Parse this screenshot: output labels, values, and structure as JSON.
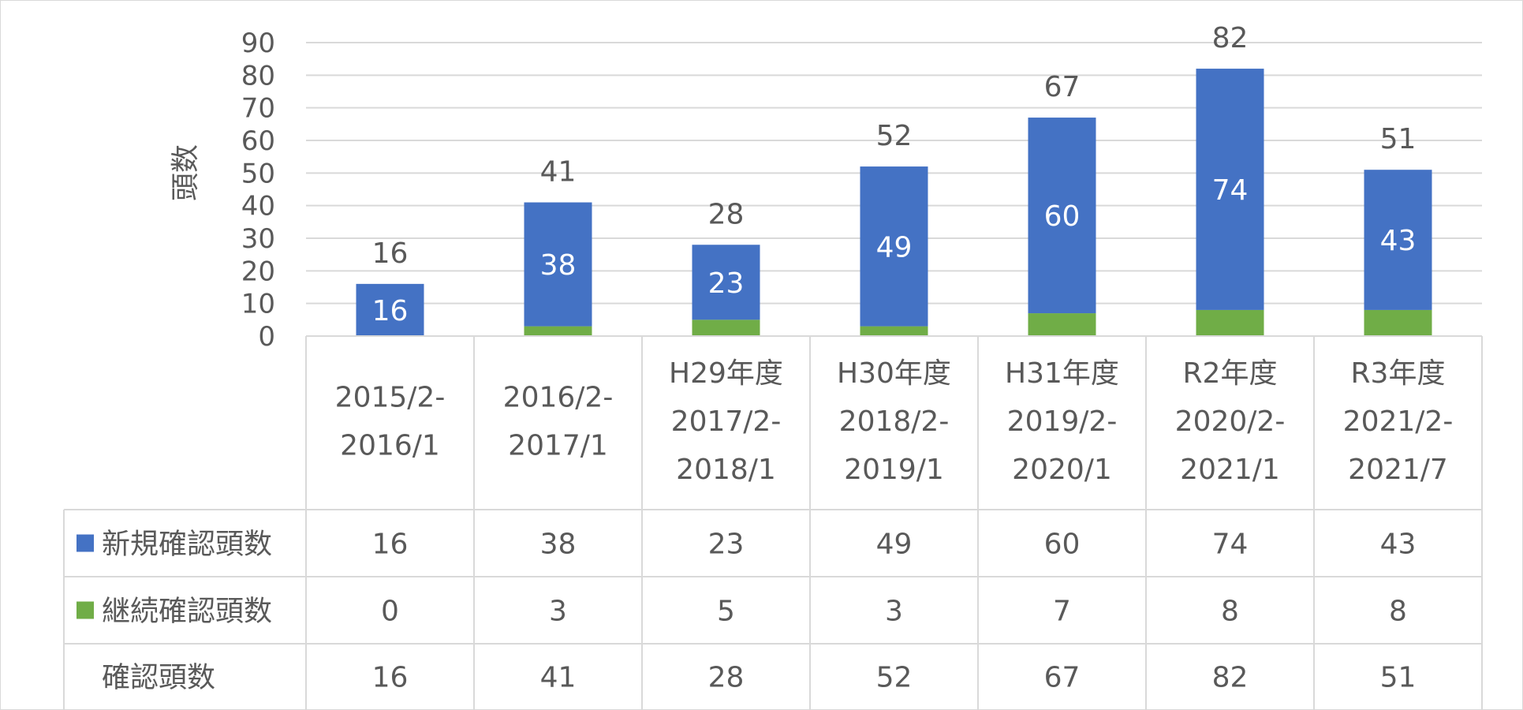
{
  "chart_data": {
    "type": "bar",
    "stacked": true,
    "ylabel": "頭数",
    "ylim": [
      0,
      90
    ],
    "yticks": [
      0,
      10,
      20,
      30,
      40,
      50,
      60,
      70,
      80,
      90
    ],
    "grid": true,
    "legend": "data-table",
    "categories": [
      [
        "2015/2-",
        "2016/1"
      ],
      [
        "2016/2-",
        "2017/1"
      ],
      [
        "H29年度",
        "2017/2-",
        "2018/1"
      ],
      [
        "H30年度",
        "2018/2-",
        "2019/1"
      ],
      [
        "H31年度",
        "2019/2-",
        "2020/1"
      ],
      [
        "R2年度",
        "2020/2-",
        "2021/1"
      ],
      [
        "R3年度",
        "2021/2-",
        "2021/7"
      ]
    ],
    "series": [
      {
        "name": "継続確認頭数",
        "color": "#70ad47",
        "values": [
          0,
          3,
          5,
          3,
          7,
          8,
          8
        ]
      },
      {
        "name": "新規確認頭数",
        "color": "#4472c4",
        "values": [
          16,
          38,
          23,
          49,
          60,
          74,
          43
        ]
      }
    ],
    "totals": {
      "name": "確認頭数",
      "values": [
        16,
        41,
        28,
        52,
        67,
        82,
        51
      ]
    }
  }
}
